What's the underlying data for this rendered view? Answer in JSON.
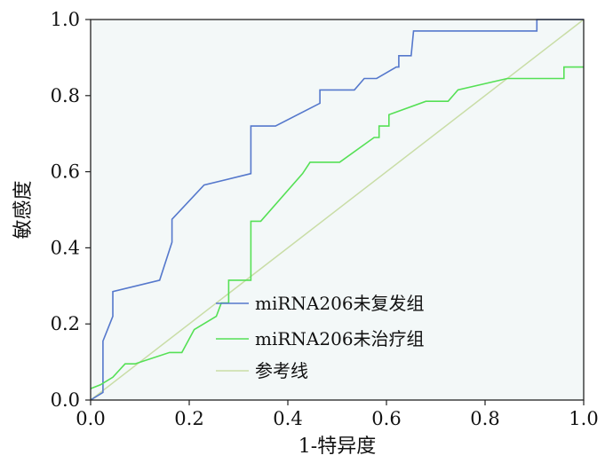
{
  "chart_data": {
    "type": "line",
    "title": "",
    "xlabel": "1-特异度",
    "ylabel": "敏感度",
    "xlim": [
      0,
      1
    ],
    "ylim": [
      0,
      1
    ],
    "x_ticks": [
      "0.0",
      "0.2",
      "0.4",
      "0.6",
      "0.8",
      "1.0"
    ],
    "y_ticks": [
      "0.0",
      "0.2",
      "0.4",
      "0.6",
      "0.8",
      "1.0"
    ],
    "grid": false,
    "legend_position": "bottom-center",
    "background_color": "#f3f8f8",
    "series": [
      {
        "name": "miRNA206未复发组",
        "color": "#5578cc",
        "x": [
          0.0,
          0.025,
          0.025,
          0.045,
          0.045,
          0.14,
          0.165,
          0.165,
          0.23,
          0.325,
          0.325,
          0.375,
          0.465,
          0.465,
          0.535,
          0.555,
          0.58,
          0.62,
          0.625,
          0.625,
          0.65,
          0.655,
          0.655,
          0.905,
          0.905,
          1.0
        ],
        "y": [
          0.0,
          0.02,
          0.155,
          0.22,
          0.285,
          0.315,
          0.415,
          0.475,
          0.565,
          0.595,
          0.72,
          0.72,
          0.78,
          0.815,
          0.815,
          0.845,
          0.845,
          0.875,
          0.875,
          0.905,
          0.905,
          0.97,
          0.97,
          0.97,
          1.0,
          1.0
        ]
      },
      {
        "name": "miRNA206未治疗组",
        "color": "#55e055",
        "x": [
          0.0,
          0.02,
          0.045,
          0.07,
          0.09,
          0.16,
          0.185,
          0.21,
          0.255,
          0.265,
          0.28,
          0.28,
          0.325,
          0.325,
          0.345,
          0.43,
          0.445,
          0.505,
          0.575,
          0.585,
          0.585,
          0.605,
          0.605,
          0.68,
          0.725,
          0.745,
          0.845,
          0.96,
          0.96,
          1.0
        ],
        "y": [
          0.03,
          0.04,
          0.06,
          0.095,
          0.095,
          0.125,
          0.125,
          0.185,
          0.22,
          0.255,
          0.255,
          0.315,
          0.315,
          0.47,
          0.47,
          0.595,
          0.625,
          0.625,
          0.69,
          0.69,
          0.72,
          0.72,
          0.75,
          0.785,
          0.785,
          0.815,
          0.845,
          0.845,
          0.875,
          0.875
        ]
      },
      {
        "name": "参考线",
        "color": "#c9dda6",
        "x": [
          0,
          1
        ],
        "y": [
          0,
          1
        ]
      }
    ]
  }
}
